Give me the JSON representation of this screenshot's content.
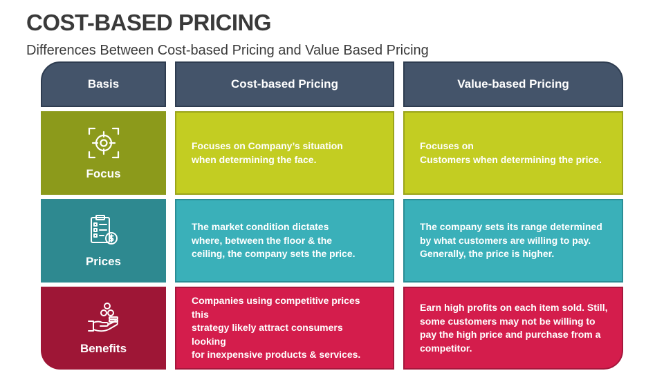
{
  "title": "COST-BASED PRICING",
  "subtitle": "Differences Between Cost-based Pricing and Value Based Pricing",
  "headers": {
    "basis": "Basis",
    "cost": "Cost-based Pricing",
    "value": "Value-based Pricing"
  },
  "rows": [
    {
      "label": "Focus",
      "icon": "target-icon",
      "cost": "Focuses on Company’s situation\nwhen  determining the face.",
      "value": "Focuses on\nCustomers when determining the price."
    },
    {
      "label": "Prices",
      "icon": "price-list-icon",
      "cost": "The market condition dictates\nwhere, between the floor & the\nceiling, the company sets the price.",
      "value": "The company sets its range determined\nby what customers are willing to pay.\nGenerally, the price is higher."
    },
    {
      "label": "Benefits",
      "icon": "hand-coins-icon",
      "cost": "Companies using competitive prices this\nstrategy likely attract consumers looking\nfor inexpensive products & services.",
      "value": "Earn high profits on each item sold. Still,\nsome customers may not be willing to\npay the high price and purchase from a\ncompetitor."
    }
  ],
  "colors": {
    "header": "#44546a",
    "focus_basis": "#8c9a1b",
    "focus": "#c3cd22",
    "prices_basis": "#2e8990",
    "prices": "#3ab0b9",
    "benefits_basis": "#9e1636",
    "benefits": "#d41d4c"
  }
}
